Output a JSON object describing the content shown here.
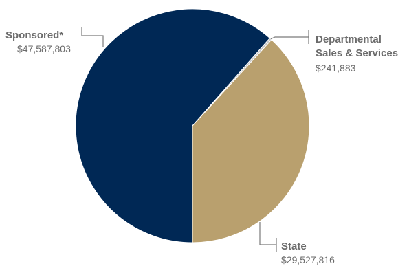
{
  "chart_data": {
    "type": "pie",
    "title": "",
    "slices": [
      {
        "label": "Sponsored*",
        "value": 47587803,
        "value_label": "$47,587,803",
        "color": "#002855"
      },
      {
        "label": "Departmental Sales & Services",
        "label_lines": [
          "Departmental",
          "Sales & Services"
        ],
        "value": 241883,
        "value_label": "$241,883",
        "color": "#c8c8c8"
      },
      {
        "label": "State",
        "value": 29527816,
        "value_label": "$29,527,816",
        "color": "#b9a06e"
      }
    ],
    "start_angle_deg": 180,
    "direction": "clockwise",
    "legend": "none",
    "label_color": "#6b6b6b"
  }
}
